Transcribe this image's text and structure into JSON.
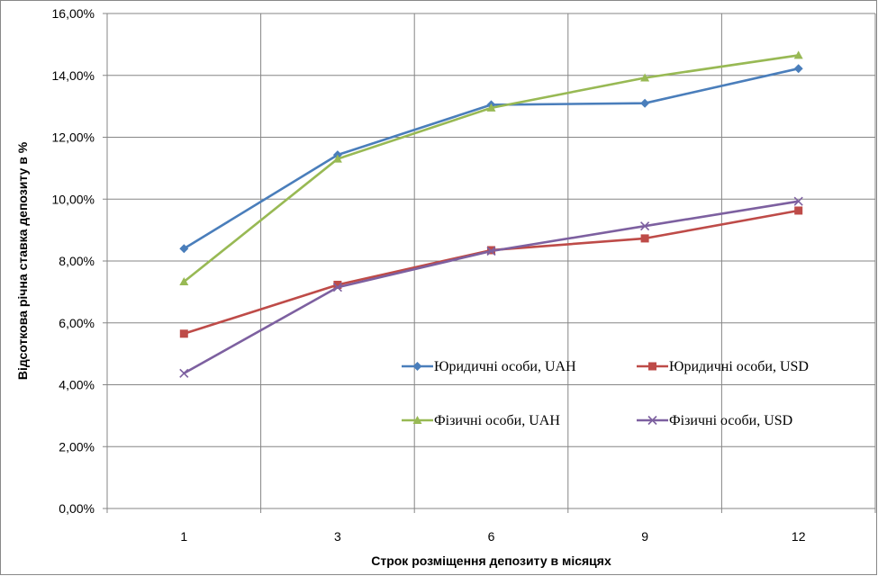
{
  "chart_data": {
    "type": "line",
    "xlabel": "Строк розміщення депозиту в місяцях",
    "ylabel": "Відсоткова річна ставка депозиту в %",
    "categories": [
      "1",
      "3",
      "6",
      "9",
      "12"
    ],
    "ylim": [
      0,
      16
    ],
    "yticks": [
      0,
      2,
      4,
      6,
      8,
      10,
      12,
      14,
      16
    ],
    "ytick_labels": [
      "0,00%",
      "2,00%",
      "4,00%",
      "6,00%",
      "8,00%",
      "10,00%",
      "12,00%",
      "14,00%",
      "16,00%"
    ],
    "grid": true,
    "legend": "inside-bottom-right",
    "series": [
      {
        "name": "Юридичні особи, UAH",
        "values": [
          8.4,
          11.43,
          13.05,
          13.1,
          14.22
        ],
        "color": "#4a7ebb",
        "marker": "diamond"
      },
      {
        "name": "Юридичні особи, USD",
        "values": [
          5.65,
          7.23,
          8.35,
          8.73,
          9.63
        ],
        "color": "#be4b48",
        "marker": "square"
      },
      {
        "name": "Фізичні особи, UAH",
        "values": [
          7.33,
          11.3,
          12.95,
          13.92,
          14.65
        ],
        "color": "#98b954",
        "marker": "triangle"
      },
      {
        "name": "Фізичні особи, USD",
        "values": [
          4.37,
          7.15,
          8.32,
          9.13,
          9.93
        ],
        "color": "#7d60a0",
        "marker": "x"
      }
    ]
  }
}
